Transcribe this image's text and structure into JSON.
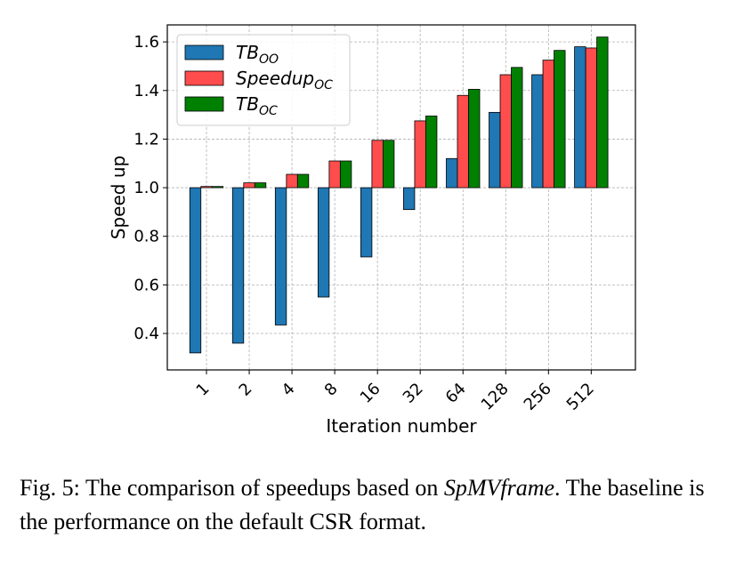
{
  "chart_data": {
    "type": "bar",
    "title": "",
    "xlabel": "Iteration number",
    "ylabel": "Speed up",
    "categories": [
      "1",
      "2",
      "4",
      "8",
      "16",
      "32",
      "64",
      "128",
      "256",
      "512"
    ],
    "baseline": 1.0,
    "ylim": [
      0.25,
      1.67
    ],
    "yticks": [
      "0.4",
      "0.6",
      "0.8",
      "1.0",
      "1.2",
      "1.4",
      "1.6"
    ],
    "grid": true,
    "legend_position": "top-left",
    "series": [
      {
        "name": "TB",
        "name_sub": "OO",
        "color": "#1f77b4",
        "values": [
          0.32,
          0.36,
          0.435,
          0.55,
          0.715,
          0.91,
          1.12,
          1.31,
          1.465,
          1.58
        ]
      },
      {
        "name": "Speedup",
        "name_sub": "OC",
        "color": "#ff4d4d",
        "values": [
          1.005,
          1.02,
          1.055,
          1.11,
          1.195,
          1.275,
          1.38,
          1.465,
          1.525,
          1.575
        ]
      },
      {
        "name": "TB",
        "name_sub": "OC",
        "color": "#008000",
        "values": [
          1.005,
          1.02,
          1.055,
          1.11,
          1.195,
          1.295,
          1.405,
          1.495,
          1.565,
          1.62
        ]
      }
    ]
  },
  "caption": {
    "prefix": "Fig. 5: The comparison of speedups based on ",
    "emphasis": "SpMVframe",
    "suffix": ". The baseline is the performance on the default CSR format."
  }
}
